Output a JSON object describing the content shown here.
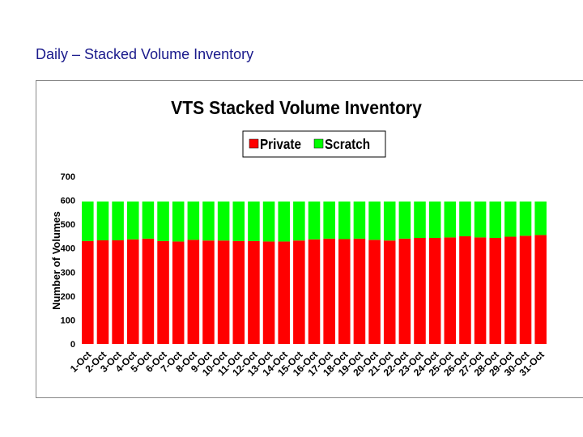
{
  "slide": {
    "title": "Daily – Stacked Volume Inventory"
  },
  "chart_data": {
    "type": "bar",
    "stacked": true,
    "title": "VTS Stacked Volume Inventory",
    "xlabel": "",
    "ylabel": "Number of Volumes",
    "ylim": [
      0,
      700
    ],
    "yticks": [
      0,
      100,
      200,
      300,
      400,
      500,
      600,
      700
    ],
    "grid": false,
    "legend": "top",
    "categories": [
      "1-Oct",
      "2-Oct",
      "3-Oct",
      "4-Oct",
      "5-Oct",
      "6-Oct",
      "7-Oct",
      "8-Oct",
      "9-Oct",
      "10-Oct",
      "11-Oct",
      "12-Oct",
      "13-Oct",
      "14-Oct",
      "15-Oct",
      "16-Oct",
      "17-Oct",
      "18-Oct",
      "19-Oct",
      "20-Oct",
      "21-Oct",
      "22-Oct",
      "23-Oct",
      "24-Oct",
      "25-Oct",
      "26-Oct",
      "27-Oct",
      "28-Oct",
      "29-Oct",
      "30-Oct",
      "31-Oct"
    ],
    "series": [
      {
        "name": "Private",
        "color": "#ff0000",
        "values": [
          430,
          433,
          433,
          437,
          440,
          430,
          428,
          435,
          432,
          432,
          430,
          430,
          428,
          428,
          432,
          437,
          440,
          438,
          440,
          435,
          432,
          440,
          443,
          443,
          445,
          450,
          445,
          443,
          448,
          452,
          455
        ]
      },
      {
        "name": "Scratch",
        "color": "#00ff00",
        "values": [
          165,
          162,
          162,
          158,
          155,
          165,
          167,
          160,
          163,
          163,
          165,
          165,
          167,
          167,
          163,
          158,
          155,
          157,
          155,
          160,
          163,
          155,
          152,
          152,
          150,
          145,
          150,
          152,
          147,
          143,
          140
        ]
      }
    ]
  }
}
